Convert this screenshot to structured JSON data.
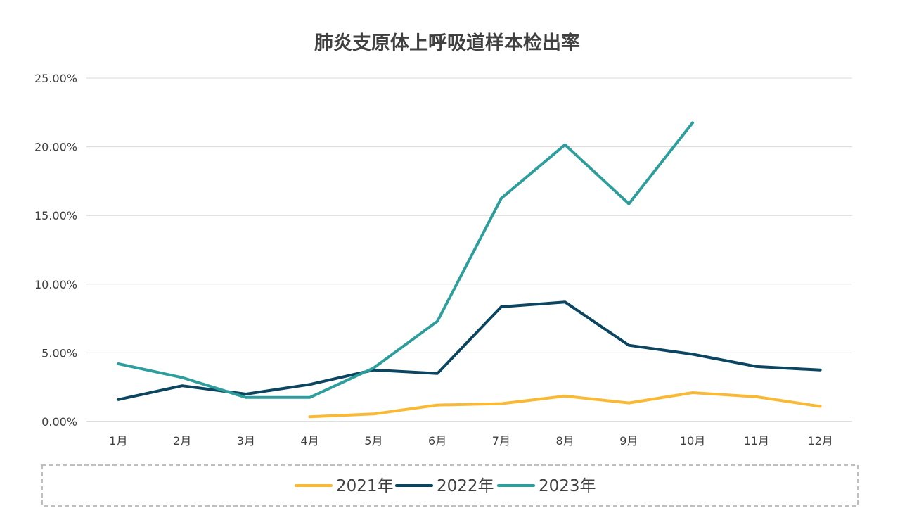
{
  "chart_data": {
    "type": "line",
    "title": "肺炎支原体上呼吸道样本检出率",
    "categories": [
      "1月",
      "2月",
      "3月",
      "4月",
      "5月",
      "6月",
      "7月",
      "8月",
      "9月",
      "10月",
      "11月",
      "12月"
    ],
    "y_ticks": [
      "0.00%",
      "5.00%",
      "10.00%",
      "15.00%",
      "20.00%",
      "25.00%"
    ],
    "ylim": [
      0,
      25
    ],
    "y_unit": "%",
    "grid": true,
    "legend_position": "bottom",
    "series": [
      {
        "name": "2021年",
        "color": "#F9B935",
        "values": [
          null,
          null,
          null,
          0.35,
          0.55,
          1.2,
          1.3,
          1.85,
          1.35,
          2.1,
          1.8,
          1.1
        ]
      },
      {
        "name": "2022年",
        "color": "#0B4560",
        "values": [
          1.6,
          2.6,
          2.0,
          2.7,
          3.75,
          3.5,
          8.35,
          8.7,
          5.55,
          4.9,
          4.0,
          3.75
        ]
      },
      {
        "name": "2023年",
        "color": "#2E9E9C",
        "values": [
          4.2,
          3.2,
          1.75,
          1.75,
          3.9,
          7.3,
          16.25,
          20.15,
          15.85,
          21.75,
          null,
          null
        ]
      }
    ]
  }
}
